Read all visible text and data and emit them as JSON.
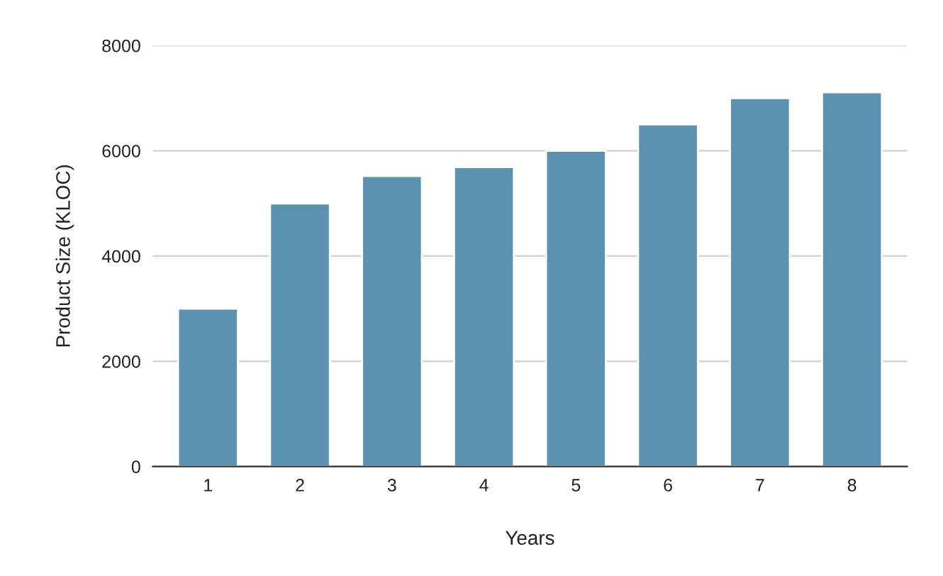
{
  "chart_data": {
    "type": "bar",
    "xlabel": "Years",
    "ylabel": "Product Size (KLOC)",
    "categories": [
      "1",
      "2",
      "3",
      "4",
      "5",
      "6",
      "7",
      "8"
    ],
    "values": [
      3000,
      5000,
      5520,
      5690,
      6000,
      6500,
      7000,
      7110
    ],
    "color": "#5b92b0",
    "ylim": [
      0,
      8000
    ],
    "yticks": [
      0,
      2000,
      4000,
      6000,
      8000
    ],
    "grid": "y",
    "legend": false
  }
}
